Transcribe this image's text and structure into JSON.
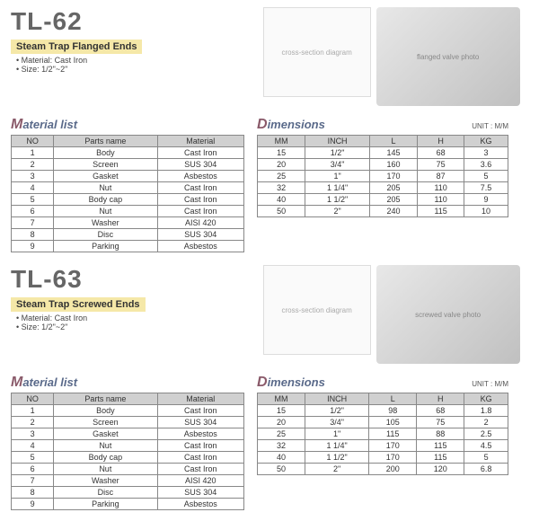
{
  "products": [
    {
      "model": "TL-62",
      "subtitle": "Steam Trap Flanged Ends",
      "material_spec": "Material: Cast Iron",
      "size_spec": "Size: 1/2\"~2\"",
      "diagram_label": "cross-section diagram",
      "photo_label": "flanged valve photo",
      "material_title": "Material list",
      "material_cols": [
        "NO",
        "Parts name",
        "Material"
      ],
      "material_rows": [
        [
          "1",
          "Body",
          "Cast Iron"
        ],
        [
          "2",
          "Screen",
          "SUS 304"
        ],
        [
          "3",
          "Gasket",
          "Asbestos"
        ],
        [
          "4",
          "Nut",
          "Cast Iron"
        ],
        [
          "5",
          "Body cap",
          "Cast Iron"
        ],
        [
          "6",
          "Nut",
          "Cast Iron"
        ],
        [
          "7",
          "Washer",
          "AISI 420"
        ],
        [
          "8",
          "Disc",
          "SUS 304"
        ],
        [
          "9",
          "Parking",
          "Asbestos"
        ]
      ],
      "dim_title": "Dimensions",
      "dim_unit": "UNIT : M/M",
      "dim_cols": [
        "MM",
        "INCH",
        "L",
        "H",
        "KG"
      ],
      "dim_rows": [
        [
          "15",
          "1/2\"",
          "145",
          "68",
          "3"
        ],
        [
          "20",
          "3/4\"",
          "160",
          "75",
          "3.6"
        ],
        [
          "25",
          "1\"",
          "170",
          "87",
          "5"
        ],
        [
          "32",
          "1 1/4\"",
          "205",
          "110",
          "7.5"
        ],
        [
          "40",
          "1 1/2\"",
          "205",
          "110",
          "9"
        ],
        [
          "50",
          "2\"",
          "240",
          "115",
          "10"
        ]
      ]
    },
    {
      "model": "TL-63",
      "subtitle": "Steam Trap Screwed Ends",
      "material_spec": "Material: Cast Iron",
      "size_spec": "Size: 1/2\"~2\"",
      "diagram_label": "cross-section diagram",
      "photo_label": "screwed valve photo",
      "material_title": "Material list",
      "material_cols": [
        "NO",
        "Parts name",
        "Material"
      ],
      "material_rows": [
        [
          "1",
          "Body",
          "Cast Iron"
        ],
        [
          "2",
          "Screen",
          "SUS 304"
        ],
        [
          "3",
          "Gasket",
          "Asbestos"
        ],
        [
          "4",
          "Nut",
          "Cast Iron"
        ],
        [
          "5",
          "Body cap",
          "Cast Iron"
        ],
        [
          "6",
          "Nut",
          "Cast Iron"
        ],
        [
          "7",
          "Washer",
          "AISI 420"
        ],
        [
          "8",
          "Disc",
          "SUS 304"
        ],
        [
          "9",
          "Parking",
          "Asbestos"
        ]
      ],
      "dim_title": "Dimensions",
      "dim_unit": "UNIT : M/M",
      "dim_cols": [
        "MM",
        "INCH",
        "L",
        "H",
        "KG"
      ],
      "dim_rows": [
        [
          "15",
          "1/2\"",
          "98",
          "68",
          "1.8"
        ],
        [
          "20",
          "3/4\"",
          "105",
          "75",
          "2"
        ],
        [
          "25",
          "1\"",
          "115",
          "88",
          "2.5"
        ],
        [
          "32",
          "1 1/4\"",
          "170",
          "115",
          "4.5"
        ],
        [
          "40",
          "1 1/2\"",
          "170",
          "115",
          "5"
        ],
        [
          "50",
          "2\"",
          "200",
          "120",
          "6.8"
        ]
      ]
    }
  ]
}
